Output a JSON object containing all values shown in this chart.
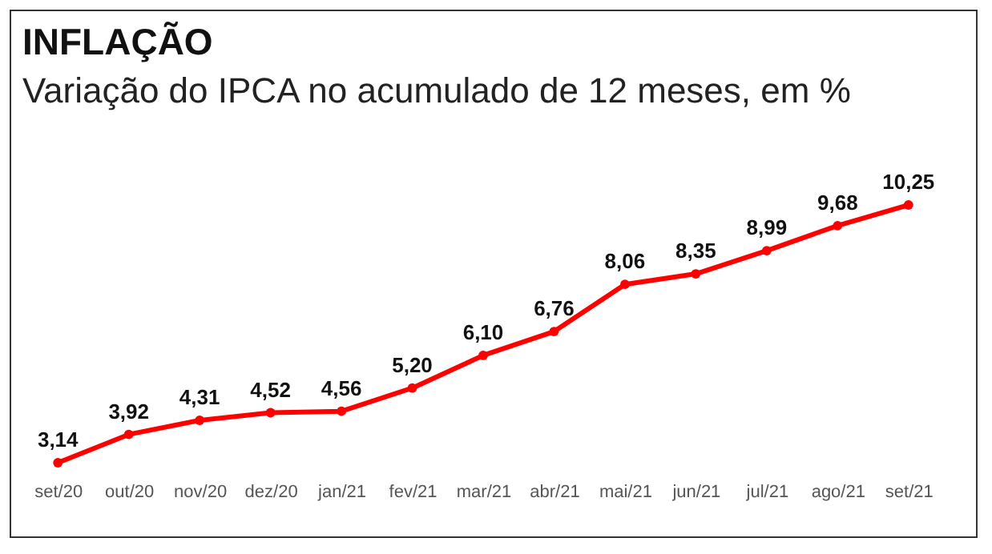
{
  "chart_data": {
    "type": "line",
    "title": "INFLAÇÃO",
    "subtitle": "Variação do IPCA no acumulado de 12 meses, em %",
    "categories": [
      "set/20",
      "out/20",
      "nov/20",
      "dez/20",
      "jan/21",
      "fev/21",
      "mar/21",
      "abr/21",
      "mai/21",
      "jun/21",
      "jul/21",
      "ago/21",
      "set/21"
    ],
    "series": [
      {
        "color": "#ff0000",
        "values": [
          3.14,
          3.92,
          4.31,
          4.52,
          4.56,
          5.2,
          6.1,
          6.76,
          8.06,
          8.35,
          8.99,
          9.68,
          10.25
        ],
        "value_labels": [
          "3,14",
          "3,92",
          "4,31",
          "4,52",
          "4,56",
          "5,20",
          "6,10",
          "6,76",
          "8,06",
          "8,35",
          "8,99",
          "9,68",
          "10,25"
        ]
      }
    ],
    "marker": "circle",
    "grid": false,
    "legend": false,
    "tick_labels": "x"
  }
}
